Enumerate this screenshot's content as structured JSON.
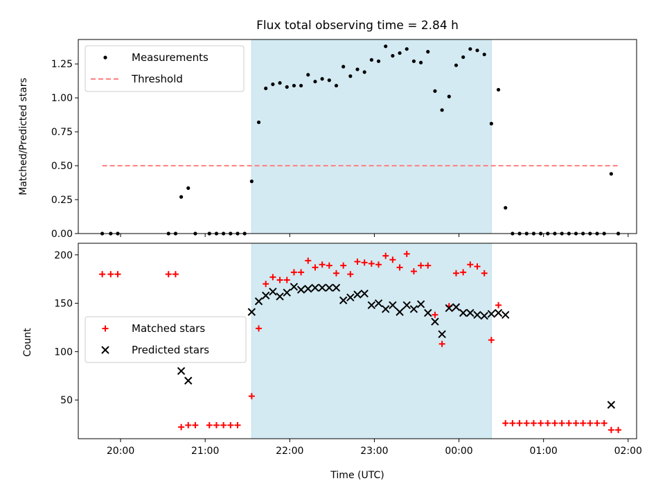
{
  "chart_data": {
    "title": "Flux total observing time = 2.84 h",
    "x_axis": {
      "label": "Time (UTC)",
      "ticks": [
        "20:00",
        "21:00",
        "22:00",
        "23:00",
        "00:00",
        "01:00",
        "02:00"
      ],
      "range": [
        "19:30",
        "02:06"
      ]
    },
    "shaded_interval": {
      "start": "21:33",
      "end": "00:23",
      "color": "#d4eaf2"
    },
    "panels": [
      {
        "type": "scatter",
        "ylabel": "Matched/Predicted stars",
        "ylim": [
          0,
          1.43
        ],
        "yticks": [
          "0.00",
          "0.25",
          "0.50",
          "0.75",
          "1.00",
          "1.25"
        ],
        "legend_position": "top-left",
        "series": [
          {
            "name": "Measurements",
            "marker": "dot",
            "color": "#000000",
            "points": [
              [
                "19:47",
                0.0
              ],
              [
                "19:53",
                0.0
              ],
              [
                "19:58",
                0.0
              ],
              [
                "20:34",
                0.0
              ],
              [
                "20:39",
                0.0
              ],
              [
                "20:43",
                0.27
              ],
              [
                "20:48",
                0.335
              ],
              [
                "20:53",
                0.0
              ],
              [
                "21:03",
                0.0
              ],
              [
                "21:08",
                0.0
              ],
              [
                "21:13",
                0.0
              ],
              [
                "21:18",
                0.0
              ],
              [
                "21:23",
                0.0
              ],
              [
                "21:28",
                0.0
              ],
              [
                "21:33",
                0.385
              ],
              [
                "21:38",
                0.82
              ],
              [
                "21:43",
                1.07
              ],
              [
                "21:48",
                1.1
              ],
              [
                "21:53",
                1.11
              ],
              [
                "21:58",
                1.08
              ],
              [
                "22:03",
                1.09
              ],
              [
                "22:08",
                1.09
              ],
              [
                "22:13",
                1.17
              ],
              [
                "22:18",
                1.12
              ],
              [
                "22:23",
                1.14
              ],
              [
                "22:28",
                1.13
              ],
              [
                "22:33",
                1.09
              ],
              [
                "22:38",
                1.23
              ],
              [
                "22:43",
                1.16
              ],
              [
                "22:48",
                1.21
              ],
              [
                "22:53",
                1.19
              ],
              [
                "22:58",
                1.28
              ],
              [
                "23:03",
                1.27
              ],
              [
                "23:08",
                1.38
              ],
              [
                "23:13",
                1.31
              ],
              [
                "23:18",
                1.33
              ],
              [
                "23:23",
                1.36
              ],
              [
                "23:28",
                1.27
              ],
              [
                "23:33",
                1.26
              ],
              [
                "23:38",
                1.34
              ],
              [
                "23:43",
                1.05
              ],
              [
                "23:48",
                0.91
              ],
              [
                "23:53",
                1.01
              ],
              [
                "23:58",
                1.24
              ],
              [
                "00:03",
                1.3
              ],
              [
                "00:08",
                1.36
              ],
              [
                "00:13",
                1.35
              ],
              [
                "00:18",
                1.32
              ],
              [
                "00:23",
                0.81
              ],
              [
                "00:28",
                1.06
              ],
              [
                "00:33",
                0.19
              ],
              [
                "00:38",
                0.0
              ],
              [
                "00:43",
                0.0
              ],
              [
                "00:48",
                0.0
              ],
              [
                "00:53",
                0.0
              ],
              [
                "00:58",
                0.0
              ],
              [
                "01:03",
                0.0
              ],
              [
                "01:08",
                0.0
              ],
              [
                "01:13",
                0.0
              ],
              [
                "01:18",
                0.0
              ],
              [
                "01:23",
                0.0
              ],
              [
                "01:28",
                0.0
              ],
              [
                "01:33",
                0.0
              ],
              [
                "01:38",
                0.0
              ],
              [
                "01:43",
                0.0
              ],
              [
                "01:48",
                0.44
              ],
              [
                "01:53",
                0.0
              ]
            ]
          },
          {
            "name": "Threshold",
            "marker": "dashed-line",
            "color": "#ff7f7f",
            "points": [
              [
                "19:47",
                0.5
              ],
              [
                "01:53",
                0.5
              ]
            ]
          }
        ]
      },
      {
        "type": "scatter",
        "ylabel": "Count",
        "ylim": [
          10,
          212
        ],
        "yticks": [
          "50",
          "100",
          "150",
          "200"
        ],
        "legend_position": "center-left",
        "series": [
          {
            "name": "Matched stars",
            "marker": "plus",
            "color": "#ff0000",
            "points": [
              [
                "19:47",
                180
              ],
              [
                "19:53",
                180
              ],
              [
                "19:58",
                180
              ],
              [
                "20:34",
                180
              ],
              [
                "20:39",
                180
              ],
              [
                "20:43",
                22
              ],
              [
                "20:48",
                24
              ],
              [
                "20:53",
                24
              ],
              [
                "21:03",
                24
              ],
              [
                "21:08",
                24
              ],
              [
                "21:13",
                24
              ],
              [
                "21:18",
                24
              ],
              [
                "21:23",
                24
              ],
              [
                "21:33",
                54
              ],
              [
                "21:38",
                124
              ],
              [
                "21:43",
                170
              ],
              [
                "21:48",
                177
              ],
              [
                "21:53",
                174
              ],
              [
                "21:58",
                174
              ],
              [
                "22:03",
                182
              ],
              [
                "22:08",
                182
              ],
              [
                "22:13",
                194
              ],
              [
                "22:18",
                187
              ],
              [
                "22:23",
                190
              ],
              [
                "22:28",
                189
              ],
              [
                "22:33",
                181
              ],
              [
                "22:38",
                189
              ],
              [
                "22:43",
                180
              ],
              [
                "22:48",
                193
              ],
              [
                "22:53",
                192
              ],
              [
                "22:58",
                191
              ],
              [
                "23:03",
                190
              ],
              [
                "23:08",
                199
              ],
              [
                "23:13",
                195
              ],
              [
                "23:18",
                187
              ],
              [
                "23:23",
                201
              ],
              [
                "23:28",
                183
              ],
              [
                "23:33",
                189
              ],
              [
                "23:38",
                189
              ],
              [
                "23:43",
                138
              ],
              [
                "23:48",
                108
              ],
              [
                "23:53",
                147
              ],
              [
                "23:58",
                181
              ],
              [
                "00:03",
                182
              ],
              [
                "00:08",
                190
              ],
              [
                "00:13",
                188
              ],
              [
                "00:18",
                181
              ],
              [
                "00:23",
                112
              ],
              [
                "00:28",
                148
              ],
              [
                "00:33",
                26
              ],
              [
                "00:38",
                26
              ],
              [
                "00:43",
                26
              ],
              [
                "00:48",
                26
              ],
              [
                "00:53",
                26
              ],
              [
                "00:58",
                26
              ],
              [
                "01:03",
                26
              ],
              [
                "01:08",
                26
              ],
              [
                "01:13",
                26
              ],
              [
                "01:18",
                26
              ],
              [
                "01:23",
                26
              ],
              [
                "01:28",
                26
              ],
              [
                "01:33",
                26
              ],
              [
                "01:38",
                26
              ],
              [
                "01:43",
                26
              ],
              [
                "01:48",
                19
              ],
              [
                "01:53",
                19
              ]
            ]
          },
          {
            "name": "Predicted stars",
            "marker": "x",
            "color": "#000000",
            "points": [
              [
                "20:43",
                80
              ],
              [
                "20:48",
                70
              ],
              [
                "21:33",
                141
              ],
              [
                "21:38",
                152
              ],
              [
                "21:43",
                158
              ],
              [
                "21:48",
                162
              ],
              [
                "21:53",
                157
              ],
              [
                "21:58",
                161
              ],
              [
                "22:03",
                167
              ],
              [
                "22:08",
                164
              ],
              [
                "22:13",
                165
              ],
              [
                "22:18",
                166
              ],
              [
                "22:23",
                166
              ],
              [
                "22:28",
                166
              ],
              [
                "22:33",
                166
              ],
              [
                "22:38",
                153
              ],
              [
                "22:43",
                156
              ],
              [
                "22:48",
                159
              ],
              [
                "22:53",
                160
              ],
              [
                "22:58",
                148
              ],
              [
                "23:03",
                150
              ],
              [
                "23:08",
                144
              ],
              [
                "23:13",
                148
              ],
              [
                "23:18",
                141
              ],
              [
                "23:23",
                148
              ],
              [
                "23:28",
                144
              ],
              [
                "23:33",
                149
              ],
              [
                "23:38",
                140
              ],
              [
                "23:43",
                131
              ],
              [
                "23:48",
                118
              ],
              [
                "23:53",
                145
              ],
              [
                "23:58",
                146
              ],
              [
                "00:03",
                140
              ],
              [
                "00:08",
                140
              ],
              [
                "00:13",
                138
              ],
              [
                "00:18",
                137
              ],
              [
                "00:23",
                139
              ],
              [
                "00:28",
                140
              ],
              [
                "00:33",
                138
              ],
              [
                "01:48",
                45
              ]
            ]
          }
        ]
      }
    ]
  }
}
